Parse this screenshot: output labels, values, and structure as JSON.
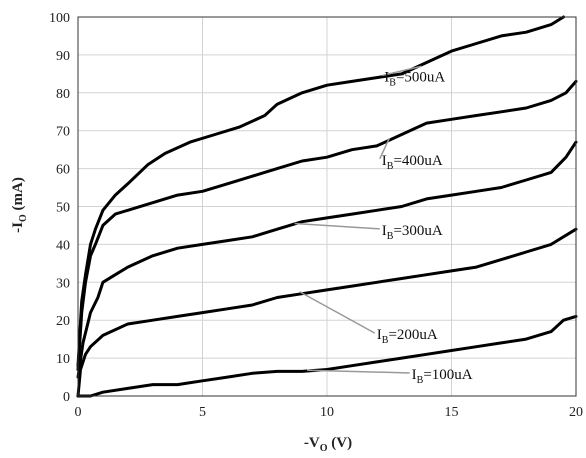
{
  "chart_data": {
    "type": "line",
    "title": "",
    "xlabel": {
      "main": "-V",
      "sub": "O",
      "unit": " (V)"
    },
    "ylabel": {
      "main": "-I",
      "sub": "O",
      "unit": " (mA)"
    },
    "xlim": [
      0,
      20
    ],
    "ylim": [
      0,
      100
    ],
    "xticks": [
      "0",
      "5",
      "10",
      "15",
      "20"
    ],
    "yticks": [
      "0",
      "10",
      "20",
      "30",
      "40",
      "50",
      "60",
      "70",
      "80",
      "90",
      "100"
    ],
    "grid": true,
    "legend": "none",
    "line_color": "#000000",
    "leader_color": "#999999",
    "series": [
      {
        "label": {
          "main": "I",
          "sub": "B",
          "rest": "=500uA"
        },
        "label_pos": [
          12.3,
          83
        ],
        "leader_from": [
          13.8,
          87
        ],
        "x": [
          0,
          0.15,
          0.3,
          0.5,
          0.7,
          1.0,
          1.5,
          2.0,
          2.8,
          3.5,
          4.5,
          5.5,
          6.5,
          7.5,
          8.0,
          9.0,
          10.0,
          11.0,
          12.0,
          13.0,
          14.0,
          15.0,
          16.0,
          17.0,
          18.0,
          19.0,
          19.5
        ],
        "y": [
          8,
          25,
          32,
          40,
          44,
          49,
          53,
          56,
          61,
          64,
          67,
          69,
          71,
          74,
          77,
          80,
          82,
          83,
          84,
          85,
          88,
          91,
          93,
          95,
          96,
          98,
          100
        ]
      },
      {
        "label": {
          "main": "I",
          "sub": "B",
          "rest": "=400uA"
        },
        "label_pos": [
          12.2,
          61
        ],
        "leader_from": [
          12.5,
          68
        ],
        "x": [
          0,
          0.15,
          0.3,
          0.5,
          0.7,
          1.0,
          1.5,
          2.0,
          3.0,
          4.0,
          5.0,
          6.0,
          7.0,
          8.0,
          9.0,
          10.0,
          11.0,
          12.0,
          13.0,
          14.0,
          15.0,
          16.0,
          17.0,
          18.0,
          19.0,
          19.6,
          20.0
        ],
        "y": [
          7,
          22,
          30,
          37,
          40,
          45,
          48,
          49,
          51,
          53,
          54,
          56,
          58,
          60,
          62,
          63,
          65,
          66,
          69,
          72,
          73,
          74,
          75,
          76,
          78,
          80,
          83
        ]
      },
      {
        "label": {
          "main": "I",
          "sub": "B",
          "rest": "=300uA"
        },
        "label_pos": [
          12.2,
          42.5
        ],
        "leader_from": [
          8.7,
          45.5
        ],
        "x": [
          0,
          0.2,
          0.5,
          0.8,
          1.0,
          1.5,
          2.0,
          3.0,
          4.0,
          5.0,
          6.0,
          7.0,
          8.0,
          9.0,
          10.0,
          11.0,
          12.0,
          13.0,
          14.0,
          15.0,
          16.0,
          17.0,
          18.0,
          19.0,
          19.6,
          20.0
        ],
        "y": [
          5,
          14,
          22,
          26,
          30,
          32,
          34,
          37,
          39,
          40,
          41,
          42,
          44,
          46,
          47,
          48,
          49,
          50,
          52,
          53,
          54,
          55,
          57,
          59,
          63,
          67
        ]
      },
      {
        "label": {
          "main": "I",
          "sub": "B",
          "rest": "=200uA"
        },
        "label_pos": [
          12.0,
          15
        ],
        "leader_from": [
          8.9,
          27.5
        ],
        "x": [
          0,
          0.1,
          0.3,
          0.5,
          1.0,
          2.0,
          3.0,
          4.0,
          5.0,
          6.0,
          7.0,
          8.0,
          9.0,
          10.0,
          11.0,
          12.0,
          13.0,
          14.0,
          15.0,
          16.0,
          17.0,
          18.0,
          19.0,
          20.0
        ],
        "y": [
          0,
          7,
          11,
          13,
          16,
          19,
          20,
          21,
          22,
          23,
          24,
          26,
          27,
          28,
          29,
          30,
          31,
          32,
          33,
          34,
          36,
          38,
          40,
          44
        ]
      },
      {
        "label": {
          "main": "I",
          "sub": "B",
          "rest": "=100uA"
        },
        "label_pos": [
          13.4,
          4.5
        ],
        "leader_from": [
          9.2,
          6.8
        ],
        "x": [
          0,
          0.5,
          1.0,
          2.0,
          3.0,
          4.0,
          5.0,
          6.0,
          7.0,
          8.0,
          9.0,
          10.0,
          11.0,
          12.0,
          13.0,
          14.0,
          15.0,
          16.0,
          17.0,
          18.0,
          19.0,
          19.5,
          20.0
        ],
        "y": [
          0,
          0,
          1,
          2,
          3,
          3,
          4,
          5,
          6,
          6.5,
          6.5,
          7,
          8,
          9,
          10,
          11,
          12,
          13,
          14,
          15,
          17,
          20,
          21
        ]
      }
    ]
  }
}
